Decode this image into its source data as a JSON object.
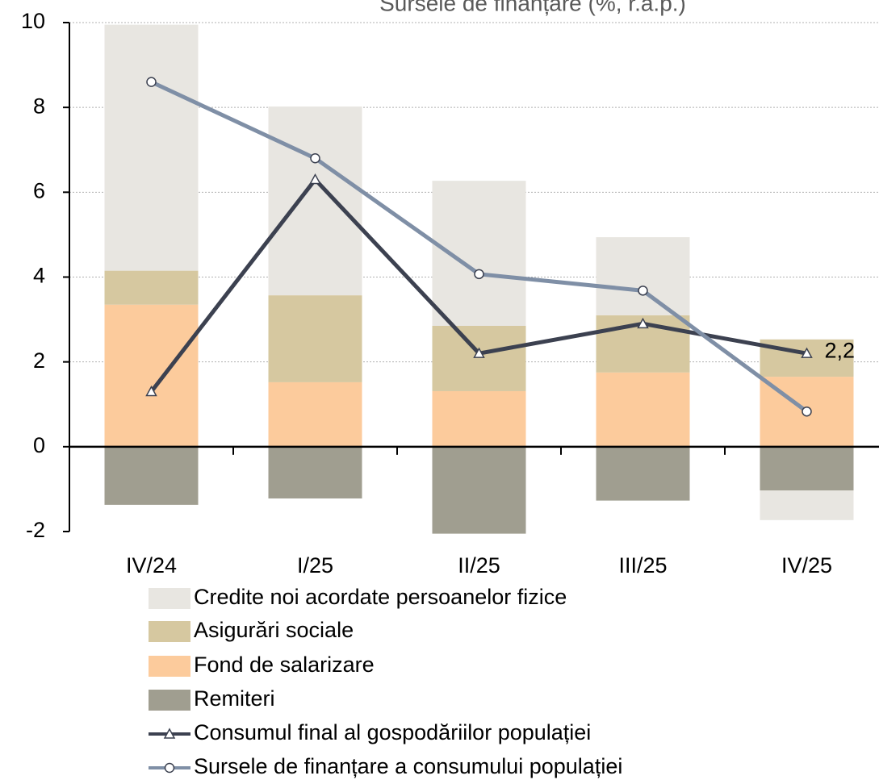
{
  "chart_data": {
    "type": "bar",
    "stacked": true,
    "title": "Sursele de finanțare (%, r.a.p.)",
    "categories": [
      "IV/24",
      "I/25",
      "II/25",
      "III/25",
      "IV/25"
    ],
    "ylim": [
      -2,
      10
    ],
    "yticks": [
      -2,
      0,
      2,
      4,
      6,
      8,
      10
    ],
    "grid": true,
    "series": [
      {
        "name": "Credite noi acordate persoanelor fizice",
        "color": "#e8e6e1",
        "values": [
          5.8,
          4.45,
          3.42,
          1.84,
          -0.7
        ]
      },
      {
        "name": "Asigurări sociale",
        "color": "#d6c8a0",
        "values": [
          0.8,
          2.05,
          1.54,
          1.35,
          0.88
        ]
      },
      {
        "name": "Fond de salarizare",
        "color": "#fccb9c",
        "values": [
          3.35,
          1.52,
          1.31,
          1.75,
          1.65
        ]
      },
      {
        "name": "Remiteri",
        "color": "#a09e90",
        "values": [
          -1.37,
          -1.22,
          -2.05,
          -1.27,
          -1.03
        ]
      },
      {
        "name": "Consumul final al gospodăriilor populației",
        "type": "line",
        "marker": "triangle",
        "color": "#3c4150",
        "values": [
          1.3,
          6.3,
          2.2,
          2.9,
          2.2
        ],
        "value_labels": [
          null,
          null,
          null,
          null,
          "2,2"
        ]
      },
      {
        "name": "Sursele de finanțare a consumului populației",
        "type": "line",
        "marker": "circle",
        "color": "#7f8fa6",
        "values": [
          8.6,
          6.8,
          4.07,
          3.68,
          0.83
        ]
      }
    ]
  }
}
